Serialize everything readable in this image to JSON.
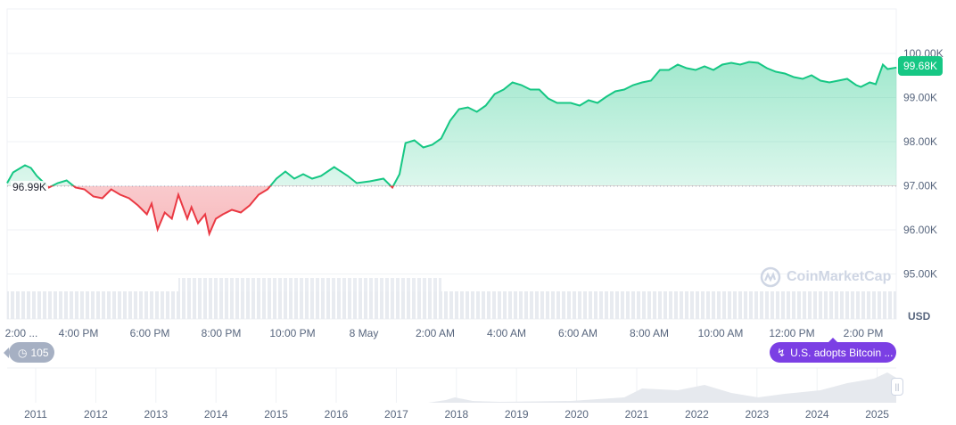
{
  "chart_data": {
    "type": "area",
    "currency": "USD",
    "baseline": 96990,
    "baseline_label": "96.99K",
    "current_label": "99.68K",
    "ylim": [
      94500,
      100300
    ],
    "y_ticks": [
      "100.00K",
      "99.00K",
      "98.00K",
      "97.00K",
      "96.00K",
      "95.00K"
    ],
    "y_tick_values": [
      100000,
      99000,
      98000,
      97000,
      96000,
      95000
    ],
    "x_ticks": [
      "2:00 ...",
      "4:00 PM",
      "6:00 PM",
      "8:00 PM",
      "10:00 PM",
      "8 May",
      "2:00 AM",
      "4:00 AM",
      "6:00 AM",
      "8:00 AM",
      "10:00 AM",
      "12:00 PM",
      "2:00 PM"
    ],
    "x_tick_times": [
      "05-07 14:30",
      "05-07 16:00",
      "05-07 18:00",
      "05-07 20:00",
      "05-07 22:00",
      "05-08 00:00",
      "05-08 02:00",
      "05-08 04:00",
      "05-08 06:00",
      "05-08 08:00",
      "05-08 10:00",
      "05-08 12:00",
      "05-08 14:00"
    ],
    "x_start": "05-07 14:00",
    "up_color": "#16c784",
    "down_color": "#ea3943",
    "grid": true,
    "points": [
      [
        "05-07 14:00",
        97061
      ],
      [
        "05-07 14:10",
        97303
      ],
      [
        "05-07 14:30",
        97465
      ],
      [
        "05-07 14:40",
        97404
      ],
      [
        "05-07 14:50",
        97222
      ],
      [
        "05-07 15:10",
        96960
      ],
      [
        "05-07 15:25",
        97061
      ],
      [
        "05-07 15:40",
        97121
      ],
      [
        "05-07 15:55",
        96960
      ],
      [
        "05-07 16:10",
        96919
      ],
      [
        "05-07 16:25",
        96758
      ],
      [
        "05-07 16:40",
        96717
      ],
      [
        "05-07 16:55",
        96919
      ],
      [
        "05-07 17:10",
        96798
      ],
      [
        "05-07 17:25",
        96717
      ],
      [
        "05-07 17:40",
        96556
      ],
      [
        "05-07 17:55",
        96354
      ],
      [
        "05-07 18:03",
        96596
      ],
      [
        "05-07 18:13",
        96010
      ],
      [
        "05-07 18:25",
        96394
      ],
      [
        "05-07 18:37",
        96253
      ],
      [
        "05-07 18:48",
        96798
      ],
      [
        "05-07 19:03",
        96253
      ],
      [
        "05-07 19:10",
        96515
      ],
      [
        "05-07 19:21",
        96152
      ],
      [
        "05-07 19:33",
        96354
      ],
      [
        "05-07 19:40",
        95909
      ],
      [
        "05-07 19:51",
        96253
      ],
      [
        "05-07 20:03",
        96354
      ],
      [
        "05-07 20:18",
        96455
      ],
      [
        "05-07 20:33",
        96394
      ],
      [
        "05-07 20:48",
        96556
      ],
      [
        "05-07 21:03",
        96798
      ],
      [
        "05-07 21:18",
        96919
      ],
      [
        "05-07 21:33",
        97162
      ],
      [
        "05-07 21:48",
        97323
      ],
      [
        "05-07 22:03",
        97162
      ],
      [
        "05-07 22:18",
        97263
      ],
      [
        "05-07 22:33",
        97162
      ],
      [
        "05-07 22:48",
        97222
      ],
      [
        "05-07 23:10",
        97424
      ],
      [
        "05-07 23:33",
        97222
      ],
      [
        "05-07 23:48",
        97061
      ],
      [
        "05-08 00:10",
        97101
      ],
      [
        "05-08 00:33",
        97162
      ],
      [
        "05-08 00:48",
        96960
      ],
      [
        "05-08 01:00",
        97263
      ],
      [
        "05-08 01:10",
        97970
      ],
      [
        "05-08 01:25",
        98030
      ],
      [
        "05-08 01:40",
        97869
      ],
      [
        "05-08 01:55",
        97929
      ],
      [
        "05-08 02:10",
        98071
      ],
      [
        "05-08 02:25",
        98475
      ],
      [
        "05-08 02:40",
        98737
      ],
      [
        "05-08 02:55",
        98778
      ],
      [
        "05-08 03:10",
        98677
      ],
      [
        "05-08 03:25",
        98818
      ],
      [
        "05-08 03:40",
        99081
      ],
      [
        "05-08 03:55",
        99182
      ],
      [
        "05-08 04:10",
        99343
      ],
      [
        "05-08 04:25",
        99283
      ],
      [
        "05-08 04:40",
        99182
      ],
      [
        "05-08 04:55",
        99182
      ],
      [
        "05-08 05:10",
        98980
      ],
      [
        "05-08 05:25",
        98879
      ],
      [
        "05-08 05:48",
        98879
      ],
      [
        "05-08 06:03",
        98818
      ],
      [
        "05-08 06:18",
        98939
      ],
      [
        "05-08 06:33",
        98879
      ],
      [
        "05-08 06:48",
        99020
      ],
      [
        "05-08 07:03",
        99141
      ],
      [
        "05-08 07:18",
        99182
      ],
      [
        "05-08 07:33",
        99283
      ],
      [
        "05-08 07:48",
        99343
      ],
      [
        "05-08 08:03",
        99384
      ],
      [
        "05-08 08:18",
        99626
      ],
      [
        "05-08 08:33",
        99626
      ],
      [
        "05-08 08:48",
        99747
      ],
      [
        "05-08 09:03",
        99667
      ],
      [
        "05-08 09:18",
        99626
      ],
      [
        "05-08 09:33",
        99707
      ],
      [
        "05-08 09:48",
        99626
      ],
      [
        "05-08 10:03",
        99747
      ],
      [
        "05-08 10:18",
        99788
      ],
      [
        "05-08 10:33",
        99747
      ],
      [
        "05-08 10:48",
        99808
      ],
      [
        "05-08 11:03",
        99788
      ],
      [
        "05-08 11:18",
        99667
      ],
      [
        "05-08 11:33",
        99586
      ],
      [
        "05-08 11:48",
        99545
      ],
      [
        "05-08 12:03",
        99465
      ],
      [
        "05-08 12:18",
        99424
      ],
      [
        "05-08 12:33",
        99505
      ],
      [
        "05-08 12:48",
        99384
      ],
      [
        "05-08 13:03",
        99343
      ],
      [
        "05-08 13:18",
        99384
      ],
      [
        "05-08 13:33",
        99424
      ],
      [
        "05-08 13:48",
        99283
      ],
      [
        "05-08 13:56",
        99242
      ],
      [
        "05-08 14:11",
        99343
      ],
      [
        "05-08 14:21",
        99303
      ],
      [
        "05-08 14:33",
        99747
      ],
      [
        "05-08 14:41",
        99646
      ],
      [
        "05-08 14:56",
        99680
      ]
    ],
    "navigator_years": [
      "2011",
      "2012",
      "2013",
      "2014",
      "2015",
      "2016",
      "2017",
      "2018",
      "2019",
      "2020",
      "2021",
      "2022",
      "2023",
      "2024",
      "2025"
    ]
  },
  "watermark": "CoinMarketCap",
  "currency_label": "USD",
  "history_badge": {
    "count": "105",
    "icon": "history-clock-icon"
  },
  "event_badge": {
    "label": "U.S. adopts Bitcoin ...",
    "icon": "lightning-icon",
    "color": "#7b3fe4"
  }
}
